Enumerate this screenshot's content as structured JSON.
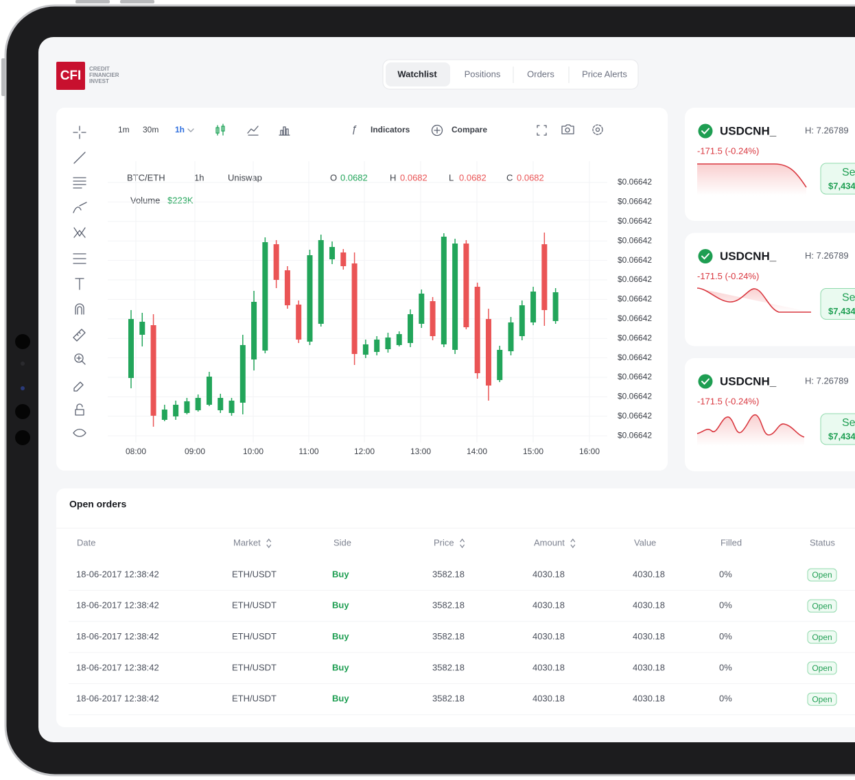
{
  "logo": {
    "mark": "CFI",
    "name": [
      "CREDIT",
      "FINANCIER",
      "INVEST"
    ]
  },
  "tabs": [
    "Watchlist",
    "Positions",
    "Orders",
    "Price Alerts"
  ],
  "toolbar": {
    "intervals": [
      "1m",
      "30m",
      "1h"
    ],
    "indicators": "Indicators",
    "compare": "Compare"
  },
  "chart_data": {
    "type": "candlestick",
    "pair": "BTC/ETH",
    "interval": "1h",
    "exchange": "Uniswap",
    "ohlc": [
      {
        "label": "O",
        "value": 0.0682,
        "color": "#22a55a"
      },
      {
        "label": "H",
        "value": 0.0682,
        "color": "#ea5455"
      },
      {
        "label": "L",
        "value": 0.0682,
        "color": "#ea5455"
      },
      {
        "label": "C",
        "value": 0.0682,
        "color": "#ea5455"
      }
    ],
    "volume_label": "Volume",
    "volume": "$223K",
    "y_labels": [
      "$0.06642",
      "$0.06642",
      "$0.06642",
      "$0.06642",
      "$0.06642",
      "$0.06642",
      "$0.06642",
      "$0.06642",
      "$0.06642",
      "$0.06642",
      "$0.06642",
      "$0.06642",
      "$0.06642",
      "$0.06642"
    ],
    "x_labels": [
      "08:00",
      "09:00",
      "10:00",
      "11:00",
      "12:00",
      "13:00",
      "14:00",
      "15:00",
      "16:00"
    ],
    "ylim": [
      0,
      420
    ],
    "up_color": "#22a55a",
    "down_color": "#ea5455",
    "grid": true,
    "candles": [
      {
        "open": 99,
        "high": 198,
        "low": 84,
        "close": 185
      },
      {
        "open": 162,
        "high": 194,
        "low": 145,
        "close": 181
      },
      {
        "open": 176,
        "high": 192,
        "low": 28,
        "close": 44
      },
      {
        "open": 38,
        "high": 60,
        "low": 36,
        "close": 53
      },
      {
        "open": 43,
        "high": 66,
        "low": 38,
        "close": 60
      },
      {
        "open": 48,
        "high": 70,
        "low": 46,
        "close": 65
      },
      {
        "open": 52,
        "high": 75,
        "low": 50,
        "close": 70
      },
      {
        "open": 60,
        "high": 108,
        "low": 58,
        "close": 101
      },
      {
        "open": 52,
        "high": 76,
        "low": 48,
        "close": 70
      },
      {
        "open": 48,
        "high": 70,
        "low": 44,
        "close": 66
      },
      {
        "open": 63,
        "high": 162,
        "low": 46,
        "close": 147
      },
      {
        "open": 126,
        "high": 226,
        "low": 110,
        "close": 210
      },
      {
        "open": 139,
        "high": 304,
        "low": 135,
        "close": 297
      },
      {
        "open": 294,
        "high": 300,
        "low": 230,
        "close": 242
      },
      {
        "open": 256,
        "high": 262,
        "low": 200,
        "close": 205
      },
      {
        "open": 206,
        "high": 212,
        "low": 150,
        "close": 155
      },
      {
        "open": 152,
        "high": 286,
        "low": 147,
        "close": 278
      },
      {
        "open": 178,
        "high": 308,
        "low": 174,
        "close": 300
      },
      {
        "open": 272,
        "high": 298,
        "low": 265,
        "close": 290
      },
      {
        "open": 282,
        "high": 287,
        "low": 257,
        "close": 262
      },
      {
        "open": 266,
        "high": 282,
        "low": 118,
        "close": 134
      },
      {
        "open": 133,
        "high": 155,
        "low": 128,
        "close": 148
      },
      {
        "open": 137,
        "high": 160,
        "low": 132,
        "close": 155
      },
      {
        "open": 141,
        "high": 165,
        "low": 136,
        "close": 158
      },
      {
        "open": 147,
        "high": 167,
        "low": 145,
        "close": 163
      },
      {
        "open": 150,
        "high": 199,
        "low": 144,
        "close": 192
      },
      {
        "open": 178,
        "high": 228,
        "low": 172,
        "close": 222
      },
      {
        "open": 211,
        "high": 217,
        "low": 154,
        "close": 160
      },
      {
        "open": 148,
        "high": 310,
        "low": 144,
        "close": 305
      },
      {
        "open": 140,
        "high": 302,
        "low": 134,
        "close": 295
      },
      {
        "open": 295,
        "high": 300,
        "low": 170,
        "close": 173
      },
      {
        "open": 232,
        "high": 238,
        "low": 98,
        "close": 106
      },
      {
        "open": 185,
        "high": 200,
        "low": 66,
        "close": 88
      },
      {
        "open": 96,
        "high": 146,
        "low": 93,
        "close": 140
      },
      {
        "open": 138,
        "high": 188,
        "low": 132,
        "close": 180
      },
      {
        "open": 160,
        "high": 212,
        "low": 154,
        "close": 205
      },
      {
        "open": 180,
        "high": 232,
        "low": 176,
        "close": 225
      },
      {
        "open": 294,
        "high": 311,
        "low": 175,
        "close": 198
      },
      {
        "open": 182,
        "high": 230,
        "low": 178,
        "close": 224
      }
    ]
  },
  "watchlist": [
    {
      "symbol": "USDCNH_",
      "high": "H: 7.26789",
      "change": "-171.5 (-0.24%)",
      "action": "Se",
      "price": "$7,434"
    },
    {
      "symbol": "USDCNH_",
      "high": "H: 7.26789",
      "change": "-171.5 (-0.24%)",
      "action": "Se",
      "price": "$7,434"
    },
    {
      "symbol": "USDCNH_",
      "high": "H: 7.26789",
      "change": "-171.5 (-0.24%)",
      "action": "Se",
      "price": "$7,434"
    }
  ],
  "orders": {
    "title": "Open orders",
    "columns": [
      "Date",
      "Market",
      "Side",
      "Price",
      "Amount",
      "Value",
      "Filled",
      "Status"
    ],
    "rows": [
      [
        "18-06-2017 12:38:42",
        "ETH/USDT",
        "Buy",
        3582.18,
        4030.18,
        4030.18,
        "0%",
        "Open"
      ],
      [
        "18-06-2017 12:38:42",
        "ETH/USDT",
        "Buy",
        3582.18,
        4030.18,
        4030.18,
        "0%",
        "Open"
      ],
      [
        "18-06-2017 12:38:42",
        "ETH/USDT",
        "Buy",
        3582.18,
        4030.18,
        4030.18,
        "0%",
        "Open"
      ],
      [
        "18-06-2017 12:38:42",
        "ETH/USDT",
        "Buy",
        3582.18,
        4030.18,
        4030.18,
        "0%",
        "Open"
      ],
      [
        "18-06-2017 12:38:42",
        "ETH/USDT",
        "Buy",
        3582.18,
        4030.18,
        4030.18,
        "0%",
        "Open"
      ]
    ]
  }
}
